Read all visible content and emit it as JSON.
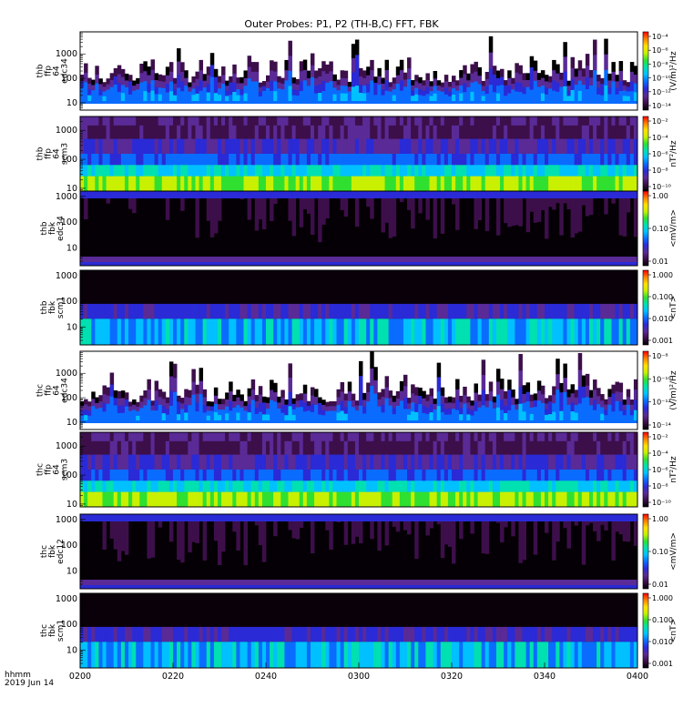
{
  "title": "Outer Probes: P1, P2 (TH-B,C) FFT, FBK",
  "footer": {
    "line1": "hhmm",
    "line2": "2019 Jun 14"
  },
  "colors": {
    "background": "#ffffff",
    "frame": "#000000",
    "palette": [
      "#000000",
      "#3c0f4a",
      "#5a2a96",
      "#2a2ad6",
      "#0a6cff",
      "#00c0ff",
      "#00e0b0",
      "#30e030",
      "#c8f000",
      "#ffe000",
      "#ff8000",
      "#ff0000"
    ]
  },
  "chart_data": {
    "type": "heatmap",
    "x_axis": {
      "tick_labels": [
        "0200",
        "0220",
        "0240",
        "0300",
        "0320",
        "0340",
        "0400"
      ]
    },
    "panels": [
      {
        "name": "thb ffp 64 edc34",
        "label_lines": [
          "thb",
          "ffp",
          "64",
          "edc34"
        ],
        "kind": "fft",
        "y_ticks": [
          "1000",
          "100",
          "10"
        ],
        "yrange": [
          5,
          8000
        ],
        "cb_labels": [
          "10⁻⁴",
          "10⁻⁶",
          "10⁻⁸",
          "10⁻¹⁰",
          "10⁻¹²",
          "10⁻¹⁴"
        ],
        "cb_title": "(V/m)²/Hz"
      },
      {
        "name": "thb ffp 64 scm3",
        "label_lines": [
          "thb",
          "ffp",
          "64",
          "scm3"
        ],
        "kind": "scm",
        "y_ticks": [
          "1000",
          "100",
          "10"
        ],
        "yrange": [
          8,
          3000
        ],
        "cb_labels": [
          "10⁻²",
          "10⁻⁴",
          "10⁻⁶",
          "10⁻⁸",
          "10⁻¹⁰"
        ],
        "cb_title": "nT²/Hz"
      },
      {
        "name": "thb fbk edc34",
        "label_lines": [
          "thb",
          "fbk",
          "edc34"
        ],
        "kind": "fbk",
        "y_ticks": [
          "1000",
          "100",
          "10"
        ],
        "yrange": [
          2,
          1600
        ],
        "cb_labels": [
          "1.00",
          "0.10",
          "0.01"
        ],
        "cb_title": "<mV/m>"
      },
      {
        "name": "thb fbk scm1",
        "label_lines": [
          "thb",
          "fbk",
          "scm1"
        ],
        "kind": "fbkscm",
        "y_ticks": [
          "1000",
          "100",
          "10"
        ],
        "yrange": [
          2,
          1600
        ],
        "cb_labels": [
          "1.000",
          "0.100",
          "0.010",
          "0.001"
        ],
        "cb_title": "<nT>"
      },
      {
        "name": "thc ffp 64 edc34",
        "label_lines": [
          "thc",
          "ffp",
          "64",
          "edc34"
        ],
        "kind": "fft",
        "y_ticks": [
          "1000",
          "100",
          "10"
        ],
        "yrange": [
          5,
          8000
        ],
        "cb_labels": [
          "10⁻⁸",
          "10⁻¹⁰",
          "10⁻¹²",
          "10⁻¹⁴"
        ],
        "cb_title": "(V/m)²/Hz"
      },
      {
        "name": "thc ffp 64 scm3",
        "label_lines": [
          "thc",
          "ffp",
          "64",
          "scm3"
        ],
        "kind": "scm",
        "y_ticks": [
          "1000",
          "100",
          "10"
        ],
        "yrange": [
          8,
          3000
        ],
        "cb_labels": [
          "10⁻²",
          "10⁻⁴",
          "10⁻⁶",
          "10⁻⁸",
          "10⁻¹⁰"
        ],
        "cb_title": "nT²/Hz"
      },
      {
        "name": "thc fbk edc12",
        "label_lines": [
          "thc",
          "fbk",
          "edc12"
        ],
        "kind": "fbk",
        "y_ticks": [
          "1000",
          "100",
          "10"
        ],
        "yrange": [
          2,
          1600
        ],
        "cb_labels": [
          "1.00",
          "0.10",
          "0.01"
        ],
        "cb_title": "<mV/m>"
      },
      {
        "name": "thc fbk scm1",
        "label_lines": [
          "thc",
          "fbk",
          "scm1"
        ],
        "kind": "fbkscm",
        "y_ticks": [
          "1000",
          "100",
          "10"
        ],
        "yrange": [
          2,
          1600
        ],
        "cb_labels": [
          "1.000",
          "0.100",
          "0.010",
          "0.001"
        ],
        "cb_title": "<nT>"
      }
    ]
  }
}
